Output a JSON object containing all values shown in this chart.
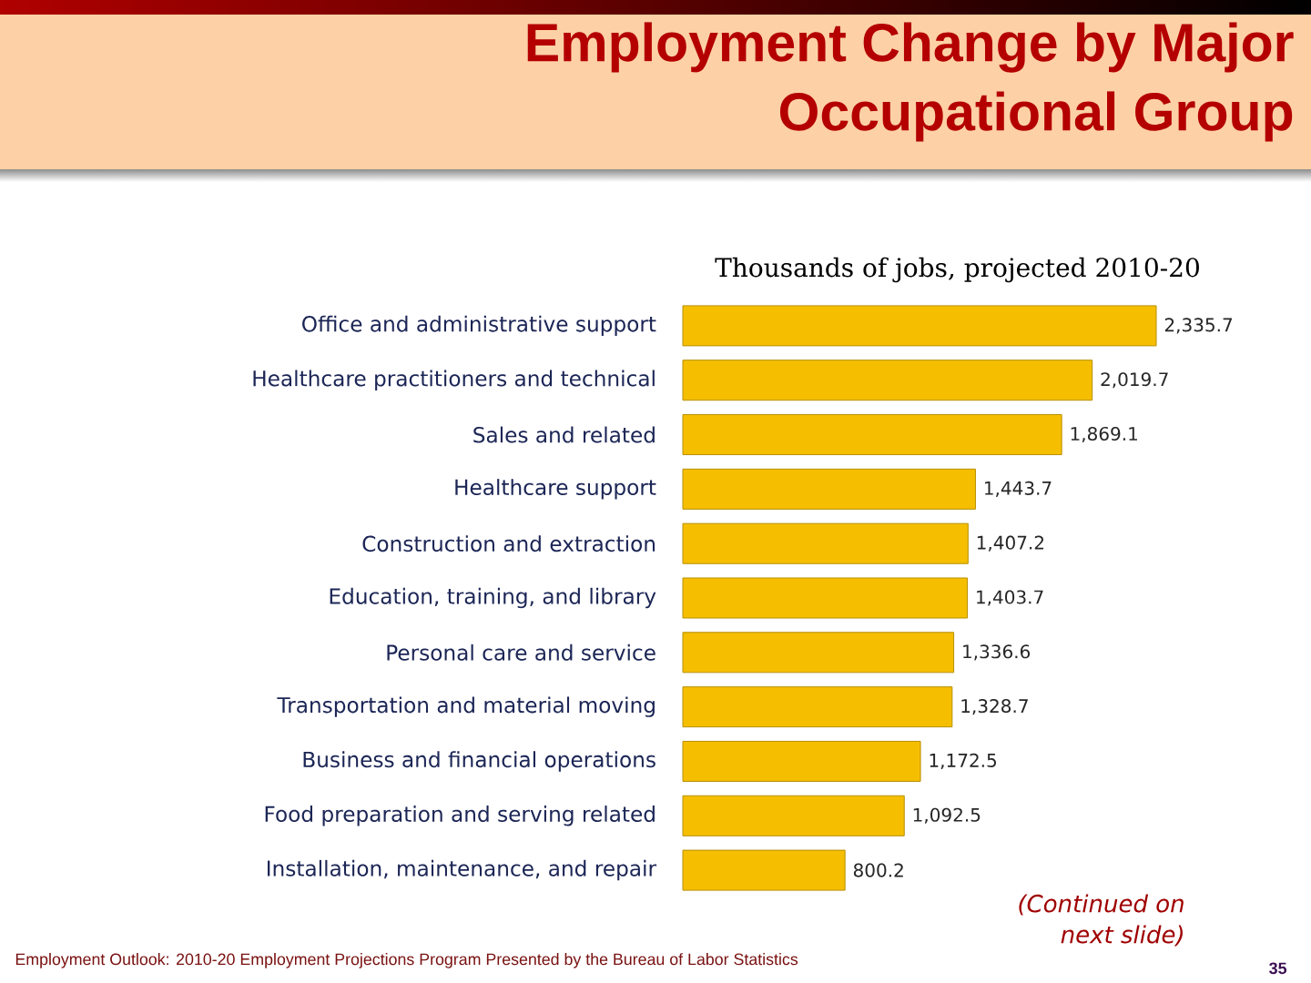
{
  "chart_data": {
    "type": "bar",
    "orientation": "horizontal",
    "title": "Employment Change by Major Occupational Group",
    "subtitle": "Thousands of jobs, projected 2010-20",
    "categories": [
      "Office and administrative support",
      "Healthcare practitioners and technical",
      "Sales and related",
      "Healthcare support",
      "Construction and extraction",
      "Education, training, and library",
      "Personal care and service",
      "Transportation and material moving",
      "Business and financial operations",
      "Food preparation and serving related",
      "Installation, maintenance, and repair"
    ],
    "values": [
      2335.7,
      2019.7,
      1869.1,
      1443.7,
      1407.2,
      1403.7,
      1336.6,
      1328.7,
      1172.5,
      1092.5,
      800.2
    ],
    "value_labels": [
      "2,335.7",
      "2,019.7",
      "1,869.1",
      "1,443.7",
      "1,407.2",
      "1,403.7",
      "1,336.6",
      "1,328.7",
      "1,172.5",
      "1,092.5",
      "800.2"
    ],
    "color": "#f5bf00",
    "annotations": [
      "(Continued on next slide)",
      "Employment Outlook: 2010-20 Employment Projections Program Presented by the Bureau of Labor Statistics",
      "35"
    ]
  }
}
